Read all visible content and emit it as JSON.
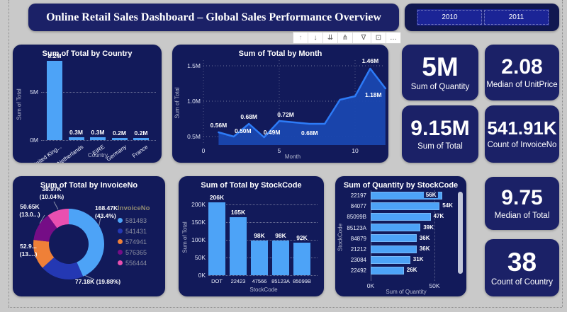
{
  "page": {
    "title": "Online Retail Sales Dashboard – Global Sales Performance Overview",
    "slicer": {
      "options": [
        "2010",
        "2011"
      ]
    },
    "toolbar": {
      "icons": [
        "drill-up",
        "drill-down",
        "expand-all-down",
        "go-to-next-level",
        "filter",
        "focus-mode",
        "more-options"
      ]
    },
    "colors": {
      "canvas_bg": "#C9C9C9",
      "card_bg": "#121A5A",
      "kpi_bg": "#1B2167",
      "accent_blue": "#4DA3F7",
      "line_blue": "#2D7BF7",
      "area_fill": "#1A47B0"
    }
  },
  "kpis": [
    {
      "value": "5M",
      "label": "Sum of Quantity"
    },
    {
      "value": "2.08",
      "label": "Median of UnitPrice"
    },
    {
      "value": "9.15M",
      "label": "Sum of Total"
    },
    {
      "value": "541.91K",
      "label": "Count of InvoiceNo"
    },
    {
      "value": "9.75",
      "label": "Median of Total"
    },
    {
      "value": "38",
      "label": "Count of Country"
    }
  ],
  "chart_data": [
    {
      "type": "bar",
      "title": "Sum of Total by Country",
      "xlabel": "Country",
      "ylabel": "Sum of Total",
      "categories": [
        "United King...",
        "Netherlands",
        "EIRE",
        "Germany",
        "France"
      ],
      "values": [
        8.2,
        0.3,
        0.3,
        0.2,
        0.2
      ],
      "data_labels": [
        "8.2M",
        "0.3M",
        "0.3M",
        "0.2M",
        "0.2M"
      ],
      "yticks": [
        {
          "v": 0,
          "label": "0M"
        },
        {
          "v": 5,
          "label": "5M"
        }
      ],
      "ylim": [
        0,
        8.6
      ],
      "bar_color": "#4DA3F7",
      "grid": "dotted"
    },
    {
      "type": "area",
      "title": "Sum of Total by Month",
      "xlabel": "Month",
      "ylabel": "Sum of Total",
      "x": [
        1,
        2,
        3,
        4,
        5,
        6,
        7,
        8,
        9,
        10,
        11,
        12
      ],
      "values": [
        0.56,
        0.5,
        0.68,
        0.49,
        0.72,
        0.7,
        0.68,
        0.68,
        1.02,
        1.07,
        1.46,
        1.18
      ],
      "point_labels": [
        {
          "month": 1,
          "text": "0.56M"
        },
        {
          "month": 2,
          "text": "0.50M"
        },
        {
          "month": 3,
          "text": "0.68M"
        },
        {
          "month": 4,
          "text": "0.49M"
        },
        {
          "month": 5,
          "text": "0.72M"
        },
        {
          "month": 7,
          "text": "0.68M"
        },
        {
          "month": 11,
          "text": "1.46M"
        },
        {
          "month": 12,
          "text": "1.18M"
        }
      ],
      "yticks": [
        {
          "v": 0.5,
          "label": "0.5M"
        },
        {
          "v": 1.0,
          "label": "1.0M"
        },
        {
          "v": 1.5,
          "label": "1.5M"
        }
      ],
      "xticks": [
        {
          "v": 0,
          "label": "0"
        },
        {
          "v": 5,
          "label": "5"
        },
        {
          "v": 10,
          "label": "10"
        }
      ],
      "ylim": [
        0.38,
        1.55
      ],
      "line_color": "#2D7BF7",
      "fill_color": "#1A47B0",
      "grid": "dotted"
    },
    {
      "type": "donut",
      "title": "Sum of Total by InvoiceNo",
      "legend_title": "InvoiceNo",
      "legend_position": "right",
      "slices": [
        {
          "invoice": "581483",
          "color": "#4DA3F7",
          "pct": 43.4,
          "label_line1": "168.47K",
          "label_line2": "(43.4%)"
        },
        {
          "invoice": "541431",
          "color": "#2438B3",
          "pct": 19.88,
          "label_line1": "77.18K (19.88%)",
          "label_line2": ""
        },
        {
          "invoice": "574941",
          "color": "#EF8038",
          "pct": 13.64,
          "label_line1": "52.9...",
          "label_line2": "(13....)"
        },
        {
          "invoice": "576365",
          "color": "#750D86",
          "pct": 13.04,
          "label_line1": "50.65K",
          "label_line2": "(13.0...)"
        },
        {
          "invoice": "556444",
          "color": "#E94FB0",
          "pct": 10.04,
          "label_line1": "38.97K",
          "label_line2": "(10.04%)"
        }
      ]
    },
    {
      "type": "bar",
      "title": "Sum of Total by StockCode",
      "xlabel": "StockCode",
      "ylabel": "Sum of Total",
      "categories": [
        "DOT",
        "22423",
        "47566",
        "85123A",
        "85099B"
      ],
      "values": [
        206,
        165,
        98,
        98,
        92
      ],
      "data_labels": [
        "206K",
        "165K",
        "98K",
        "98K",
        "92K"
      ],
      "yticks": [
        {
          "v": 0,
          "label": "0K"
        },
        {
          "v": 50,
          "label": "50K"
        },
        {
          "v": 100,
          "label": "100K"
        },
        {
          "v": 150,
          "label": "150K"
        },
        {
          "v": 200,
          "label": "200K"
        }
      ],
      "ylim": [
        0,
        225
      ],
      "bar_color": "#4DA3F7",
      "grid": "dotted"
    },
    {
      "type": "hbar",
      "title": "Sum of Quantity by StockCode",
      "xlabel": "Sum of Quantity",
      "ylabel": "StockCode",
      "categories": [
        "22197",
        "84077",
        "85099B",
        "85123A",
        "84879",
        "21212",
        "23084",
        "22492"
      ],
      "values": [
        56,
        54,
        47,
        39,
        36,
        36,
        31,
        26
      ],
      "data_labels": [
        "56K",
        "54K",
        "47K",
        "39K",
        "36K",
        "36K",
        "31K",
        "26K"
      ],
      "xticks": [
        {
          "v": 0,
          "label": "0K"
        },
        {
          "v": 50,
          "label": "50K"
        }
      ],
      "xlim": [
        0,
        62
      ],
      "bar_color": "#4DA3F7",
      "first_label_inside": true,
      "scrollbar": true
    }
  ]
}
